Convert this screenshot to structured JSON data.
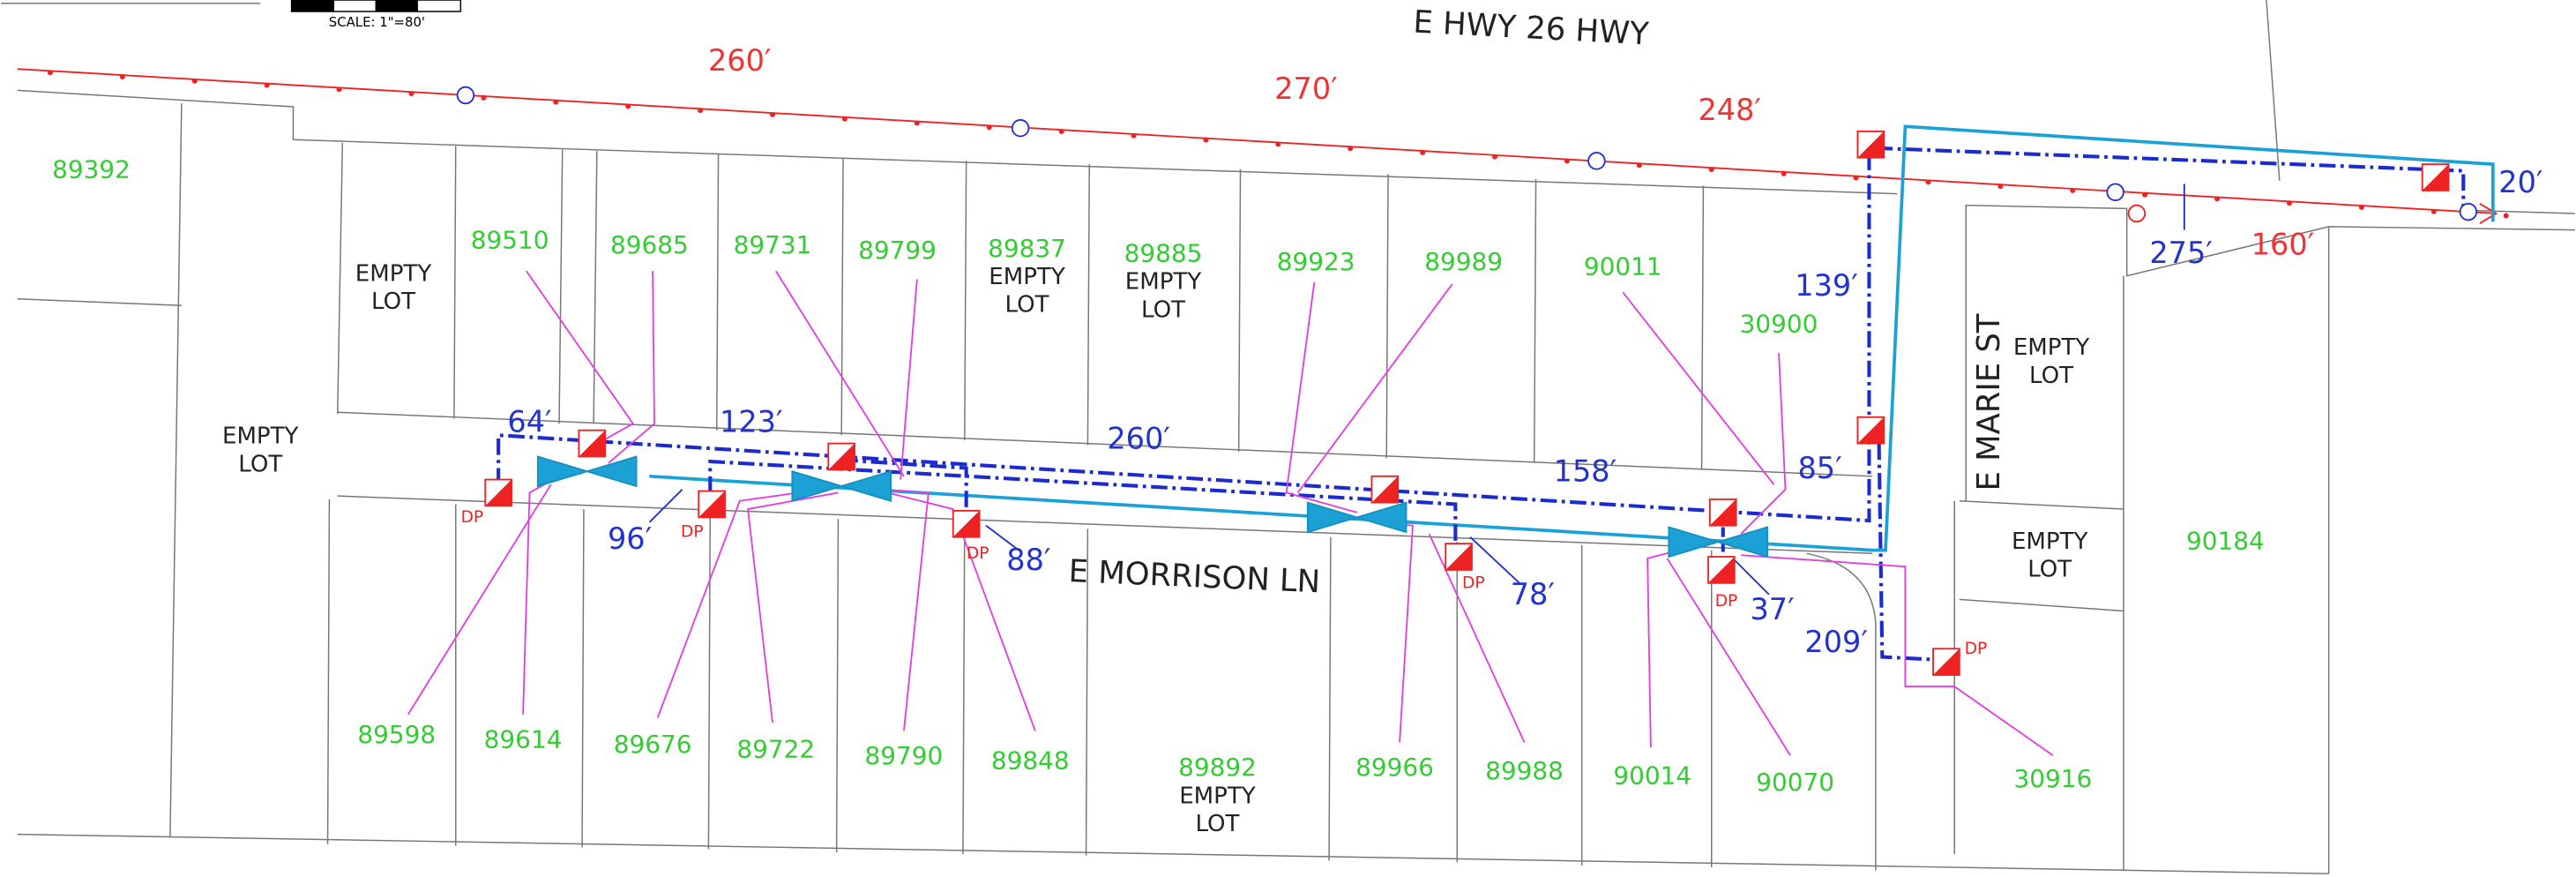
{
  "scale_bar": {
    "label": "SCALE: 1\"=80'"
  },
  "streets": [
    "E HWY 26 HWY",
    "E MORRISON LN",
    "E MARIE ST"
  ],
  "lots": [
    {
      "number": "89392"
    },
    {
      "number": "89510"
    },
    {
      "number": "89685"
    },
    {
      "number": "89731"
    },
    {
      "number": "89799"
    },
    {
      "number": "89837",
      "note": [
        "EMPTY",
        "LOT"
      ]
    },
    {
      "number": "89885",
      "note": [
        "EMPTY",
        "LOT"
      ]
    },
    {
      "number": "89923"
    },
    {
      "number": "89989"
    },
    {
      "number": "90011"
    },
    {
      "number": "30900"
    },
    {
      "number": "90184"
    },
    {
      "number": "89598"
    },
    {
      "number": "89614"
    },
    {
      "number": "89676"
    },
    {
      "number": "89722"
    },
    {
      "number": "89790"
    },
    {
      "number": "89848"
    },
    {
      "number": "89892",
      "note": [
        "EMPTY",
        "LOT"
      ]
    },
    {
      "number": "89966"
    },
    {
      "number": "89988"
    },
    {
      "number": "90014"
    },
    {
      "number": "90070"
    },
    {
      "number": "30916"
    }
  ],
  "empty_lots": [
    [
      "EMPTY",
      "LOT"
    ],
    [
      "EMPTY",
      "LOT"
    ],
    [
      "EMPTY",
      "LOT"
    ],
    [
      "EMPTY",
      "LOT"
    ]
  ],
  "aerial_spans": [
    "260′",
    "270′",
    "248′",
    "160′"
  ],
  "service_runs": [
    "64′",
    "123′",
    "260′",
    "158′",
    "85′",
    "139′",
    "275′",
    "20′",
    "96′",
    "88′",
    "78′",
    "37′",
    "209′"
  ],
  "drop_points": [
    "DP",
    "DP",
    "DP",
    "DP",
    "DP",
    "DP"
  ]
}
